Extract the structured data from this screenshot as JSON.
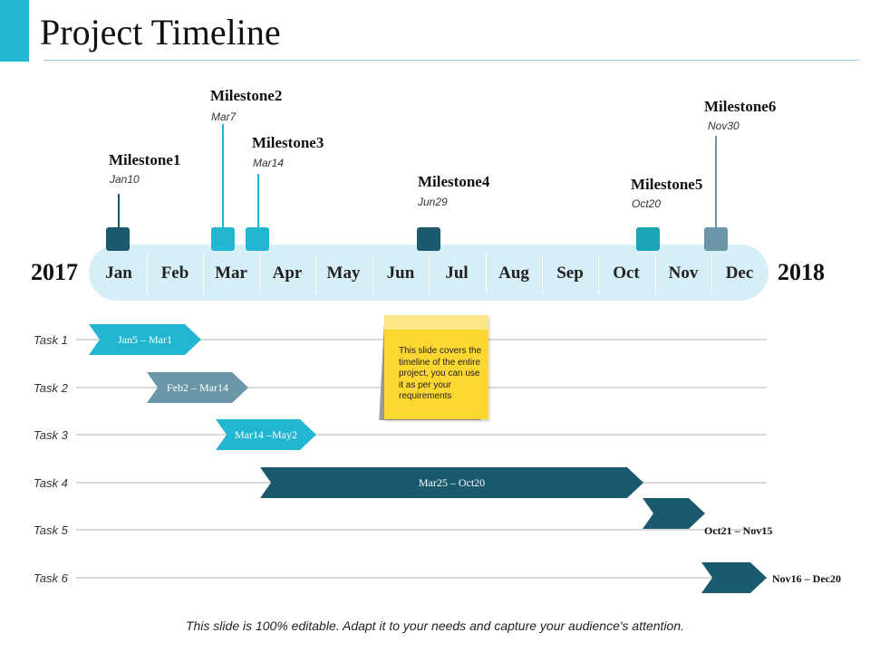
{
  "title": "Project Timeline",
  "years": {
    "start": "2017",
    "end": "2018"
  },
  "months": [
    "Jan",
    "Feb",
    "Mar",
    "Apr",
    "May",
    "Jun",
    "Jul",
    "Aug",
    "Sep",
    "Oct",
    "Nov",
    "Dec"
  ],
  "milestones": [
    {
      "name": "Milestone1",
      "date": "Jan10",
      "color": "#1b5a6e"
    },
    {
      "name": "Milestone2",
      "date": "Mar7",
      "color": "#23b6d3"
    },
    {
      "name": "Milestone3",
      "date": "Mar14",
      "color": "#23b6d3"
    },
    {
      "name": "Milestone4",
      "date": "Jun29",
      "color": "#1b5a6e"
    },
    {
      "name": "Milestone5",
      "date": "Oct20",
      "color": "#1aa6b7"
    },
    {
      "name": "Milestone6",
      "date": "Nov30",
      "color": "#6a96a8"
    }
  ],
  "tasks": [
    {
      "label": "Task 1",
      "range": "Jan5 – Mar1",
      "color": "#23b6d3"
    },
    {
      "label": "Task 2",
      "range": "Feb2 – Mar14",
      "color": "#6a96a8"
    },
    {
      "label": "Task 3",
      "range": "Mar14 –May2",
      "color": "#23b6d3"
    },
    {
      "label": "Task 4",
      "range": "Mar25 – Oct20",
      "color": "#1b5a6e"
    },
    {
      "label": "Task 5",
      "range": "Oct21 – Nov15",
      "color": "#1b5a6e"
    },
    {
      "label": "Task 6",
      "range": "Nov16 – Dec20",
      "color": "#1b5a6e"
    }
  ],
  "note": "This slide covers the timeline of the entire project, you can use it as per your requirements",
  "footer": "This slide is 100% editable. Adapt it to your needs and capture your audience's attention."
}
